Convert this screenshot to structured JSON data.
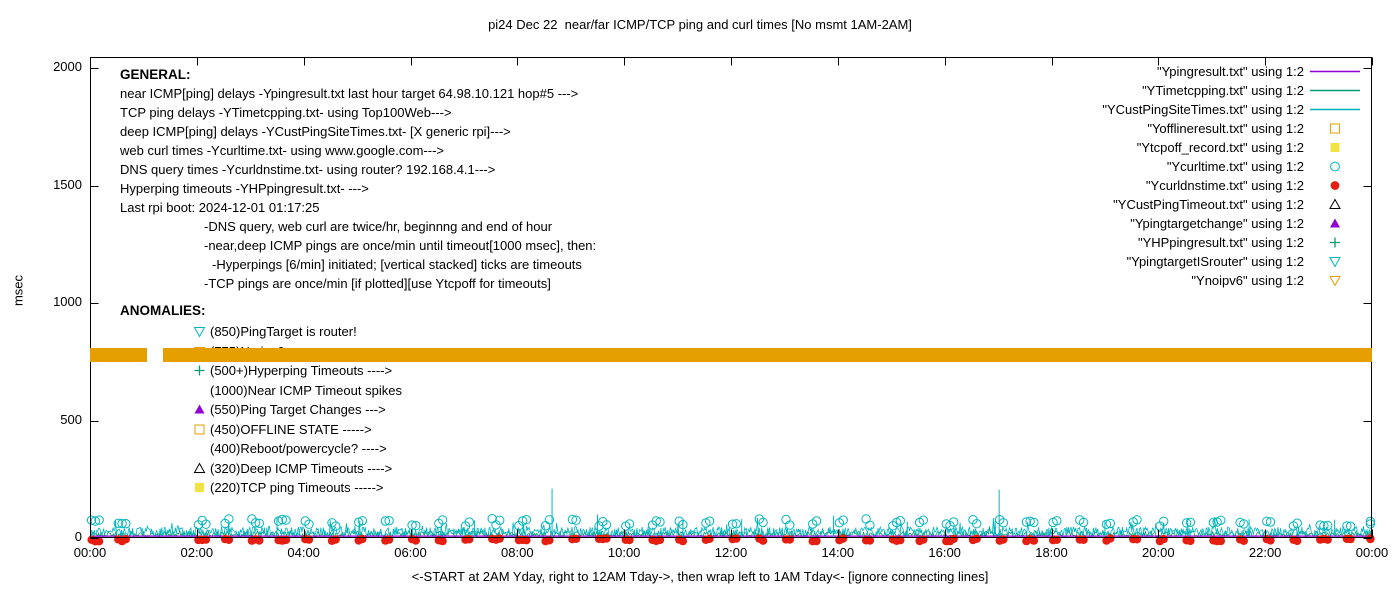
{
  "title": "pi24 Dec 22  near/far ICMP/TCP ping and curl times [No msmt 1AM-2AM]",
  "axes": {
    "y_label": "msec",
    "x_label": "<-START at 2AM Yday, right to 12AM Tday->, then wrap left to 1AM Tday<- [ignore connecting lines]",
    "y_ticks": [
      0,
      500,
      1000,
      1500,
      2000
    ],
    "x_ticks": [
      "00:00",
      "02:00",
      "04:00",
      "06:00",
      "08:00",
      "10:00",
      "12:00",
      "14:00",
      "16:00",
      "18:00",
      "20:00",
      "22:00",
      "00:00"
    ]
  },
  "general": {
    "heading": "GENERAL:",
    "lines": [
      "near ICMP[ping] delays -Ypingresult.txt last hour target 64.98.10.121 hop#5 --->",
      "TCP ping delays -YTimetcpping.txt- using Top100Web--->",
      "deep ICMP[ping] delays -YCustPingSiteTimes.txt- [X generic rpi]--->",
      "web curl times -Ycurltime.txt- using www.google.com--->",
      "DNS query times -Ycurldnstime.txt- using router? 192.168.4.1--->",
      "Hyperping timeouts -YHPpingresult.txt- --->",
      "Last rpi boot: 2024-12-01 01:17:25"
    ],
    "notes": [
      {
        "text": "-DNS query, web curl are twice/hr, beginnng and end of hour",
        "indent": 1
      },
      {
        "text": "-near,deep ICMP pings are once/min until timeout[1000 msec], then:",
        "indent": 1
      },
      {
        "text": "-Hyperpings [6/min] initiated; [vertical stacked] ticks are timeouts",
        "indent": 2
      },
      {
        "text": "-TCP pings are once/min [if plotted][use Ytcpoff for timeouts]",
        "indent": 1
      }
    ]
  },
  "anomalies": {
    "heading": "ANOMALIES:",
    "items": [
      {
        "marker": "triangle-down-open",
        "color": "teal",
        "text": "(850)PingTarget is router!"
      },
      {
        "marker": "triangle-down-open",
        "color": "orange",
        "text": "(775)No ipv6 ----->",
        "obscured_by_band": true
      },
      {
        "marker": "plus",
        "color": "green",
        "text": "(500+)Hyperping Timeouts ---->"
      },
      {
        "marker": "none",
        "color": "",
        "text": "(1000)Near ICMP Timeout spikes"
      },
      {
        "marker": "triangle-up-filled",
        "color": "purple",
        "text": "(550)Ping Target Changes --->"
      },
      {
        "marker": "square-open",
        "color": "orange",
        "text": "(450)OFFLINE STATE ----->"
      },
      {
        "marker": "none",
        "color": "",
        "text": "(400)Reboot/powercycle? ---->"
      },
      {
        "marker": "triangle-up-open",
        "color": "black",
        "text": "(320)Deep ICMP Timeouts ---->"
      },
      {
        "marker": "square-filled",
        "color": "yellow",
        "text": "(220)TCP ping Timeouts ----->"
      }
    ]
  },
  "legend": [
    {
      "label": "\"Ypingresult.txt\" using 1:2",
      "marker": "line",
      "color": "purple"
    },
    {
      "label": "\"YTimetcpping.txt\" using 1:2",
      "marker": "line",
      "color": "green"
    },
    {
      "label": "\"YCustPingSiteTimes.txt\" using 1:2",
      "marker": "line",
      "color": "teal"
    },
    {
      "label": "\"Yofflineresult.txt\" using 1:2",
      "marker": "square-open",
      "color": "orange"
    },
    {
      "label": "\"Ytcpoff_record.txt\" using 1:2",
      "marker": "square-filled",
      "color": "yellow"
    },
    {
      "label": "\"Ycurltime.txt\" using 1:2",
      "marker": "circle-open",
      "color": "teal"
    },
    {
      "label": "\"Ycurldnstime.txt\" using 1:2",
      "marker": "circle-filled",
      "color": "red"
    },
    {
      "label": "\"YCustPingTimeout.txt\" using 1:2",
      "marker": "triangle-up-open",
      "color": "black"
    },
    {
      "label": "\"Ypingtargetchange\" using 1:2",
      "marker": "triangle-up-filled",
      "color": "purple"
    },
    {
      "label": "\"YHPpingresult.txt\" using 1:2",
      "marker": "plus",
      "color": "green"
    },
    {
      "label": "\"YpingtargetISrouter\" using 1:2",
      "marker": "triangle-down-open",
      "color": "teal"
    },
    {
      "label": "\"Ynoipv6\" using 1:2",
      "marker": "triangle-down-open",
      "color": "orange"
    }
  ],
  "colors": {
    "purple": "#9400D3",
    "green": "#009E73",
    "teal": "#00B5BD",
    "orange": "#E69F00",
    "yellow": "#F0E442",
    "red": "#E51E10",
    "black": "#000000",
    "frame": "#000000"
  },
  "chart_data": {
    "type": "line",
    "x_unit": "hours",
    "x_range": [
      0,
      24
    ],
    "x_tick_step_hr": 2,
    "y_unit": "msec",
    "y_range": [
      0,
      2045
    ],
    "grid": false,
    "legend_position": "top-right",
    "no_measurement_window_hr": [
      1,
      2
    ],
    "noise_seed": 7,
    "series": [
      {
        "name": "Ypingresult.txt",
        "style": "line",
        "color": "purple",
        "approx": "flat baseline ~8 msec across full day",
        "baseline_msec": 8
      },
      {
        "name": "YTimetcpping.txt",
        "style": "noisy-line",
        "color": "green",
        "approx": "once/min noise 3-30 msec",
        "base_msec": 3,
        "amp_msec": 26,
        "burst_p": 0.02,
        "burst_amp_msec": 30
      },
      {
        "name": "YCustPingSiteTimes.txt",
        "style": "noisy-line",
        "color": "teal",
        "approx": "once/min noise 5-50 msec, bursts to ~95",
        "base_msec": 5,
        "amp_msec": 42,
        "burst_p": 0.05,
        "burst_amp_msec": 45
      },
      {
        "name": "Ycurltime.txt",
        "style": "scatter",
        "marker": "circle-open",
        "color": "teal",
        "approx": "pairs of points 50-85 msec at each half hour",
        "level_msec": [
          50,
          82
        ]
      },
      {
        "name": "Ycurldnstime.txt",
        "style": "scatter",
        "marker": "circle-filled",
        "color": "red",
        "approx": "pairs of points ~0 msec at each half hour",
        "level_msec": [
          -14,
          -2
        ]
      },
      {
        "name": "Ynoipv6",
        "style": "band",
        "color": "orange",
        "band_center_msec": 779,
        "band_halfwidth_msec": 29,
        "gap_hr": [
          1.07,
          1.37
        ]
      }
    ],
    "spikes_msec": [
      {
        "t_hr": 2.6,
        "v": 70
      },
      {
        "t_hr": 3.5,
        "v": 90
      },
      {
        "t_hr": 5.05,
        "v": 75
      },
      {
        "t_hr": 7.2,
        "v": 75
      },
      {
        "t_hr": 8.65,
        "v": 210
      },
      {
        "t_hr": 9.5,
        "v": 100
      },
      {
        "t_hr": 11.1,
        "v": 72
      },
      {
        "t_hr": 12.2,
        "v": 80
      },
      {
        "t_hr": 13.92,
        "v": 95
      },
      {
        "t_hr": 15.3,
        "v": 70
      },
      {
        "t_hr": 17.02,
        "v": 205
      },
      {
        "t_hr": 19.0,
        "v": 75
      },
      {
        "t_hr": 20.55,
        "v": 85
      },
      {
        "t_hr": 21.7,
        "v": 80
      },
      {
        "t_hr": 23.3,
        "v": 78
      }
    ]
  }
}
